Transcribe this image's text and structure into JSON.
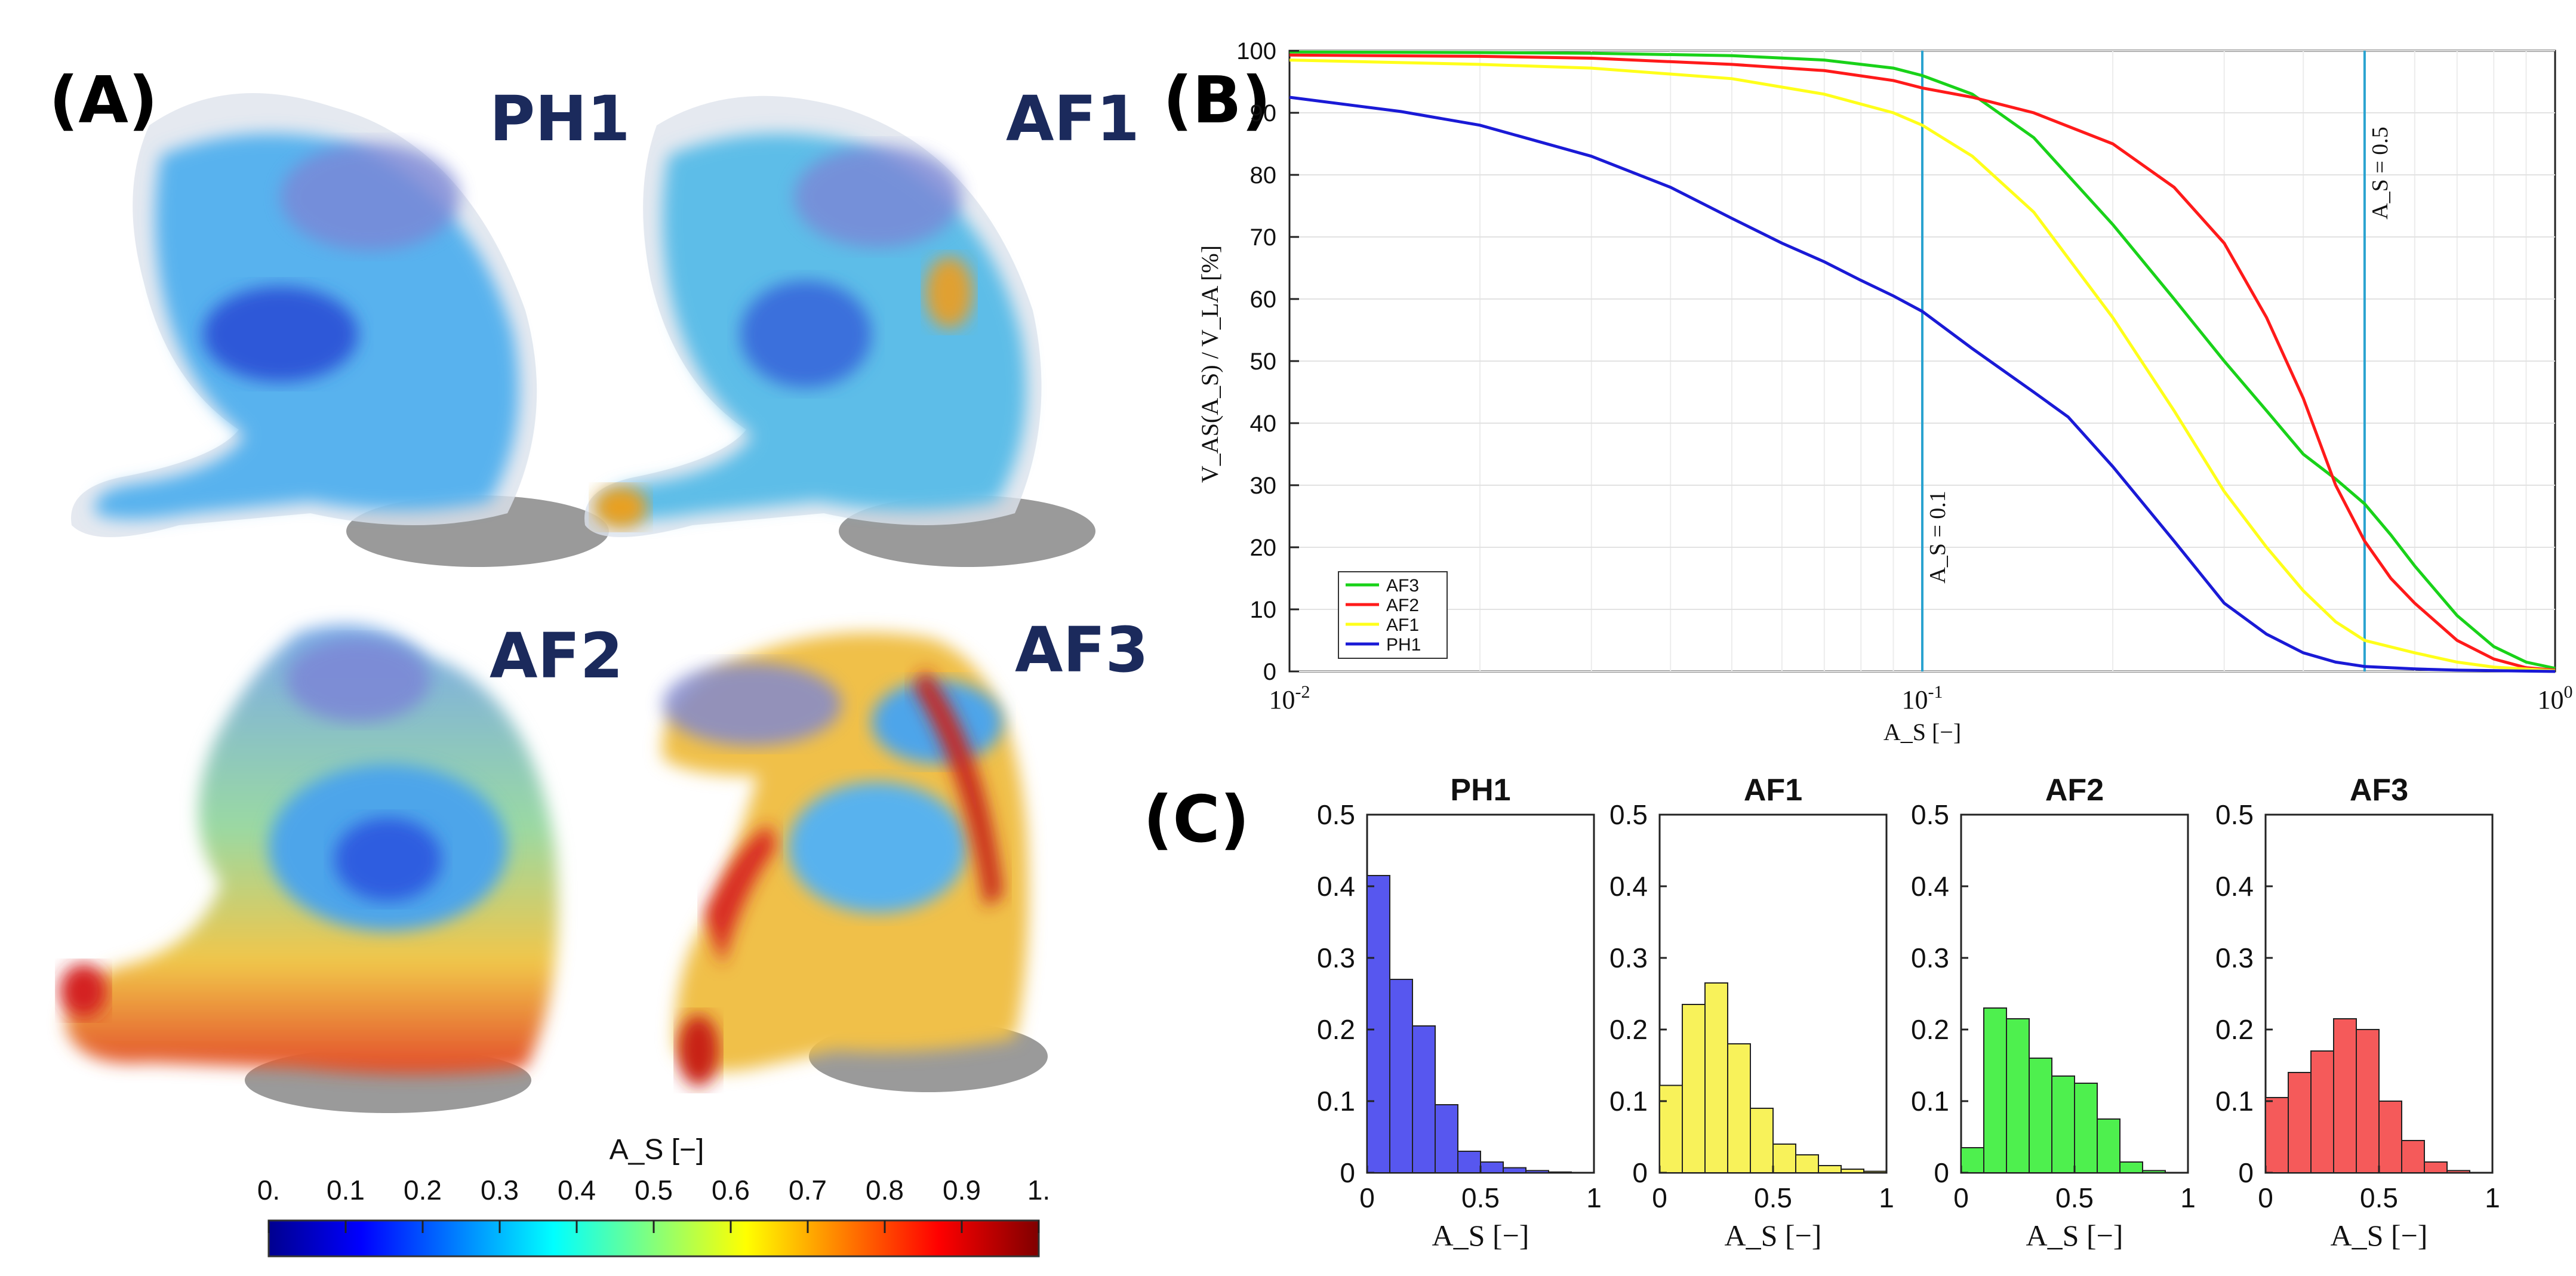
{
  "panels": {
    "a": "(A)",
    "b": "(B)",
    "c": "(C)"
  },
  "hearts": [
    "PH1",
    "AF1",
    "AF2",
    "AF3"
  ],
  "colorbar": {
    "title": "A_S [−]",
    "ticks": [
      "0.",
      "0.1",
      "0.2",
      "0.3",
      "0.4",
      "0.5",
      "0.6",
      "0.7",
      "0.8",
      "0.9",
      "1."
    ],
    "colors": [
      "#00008f",
      "#0000ff",
      "#00ffff",
      "#ffff00",
      "#ff0000",
      "#800000"
    ]
  },
  "chart_data": [
    {
      "type": "line",
      "id": "cumulative-volume",
      "xscale": "log",
      "xlim": [
        0.01,
        1
      ],
      "ylim": [
        0,
        100
      ],
      "xlabel": "A_S [−]",
      "ylabel": "V_AS(A_S) / V_LA [%]",
      "x_ticks": [
        "10^-2",
        "10^-1",
        "10^0"
      ],
      "y_ticks": [
        0,
        10,
        20,
        30,
        40,
        50,
        60,
        70,
        80,
        90,
        100
      ],
      "grid": true,
      "legend_position": "bottom-left",
      "vlines": [
        {
          "x": 0.1,
          "label": "A_S = 0.1"
        },
        {
          "x": 0.5,
          "label": "A_S = 0.5"
        }
      ],
      "series": [
        {
          "name": "AF3",
          "color": "#19d219",
          "points": [
            [
              0.01,
              99.8
            ],
            [
              0.02,
              99.7
            ],
            [
              0.03,
              99.6
            ],
            [
              0.05,
              99.2
            ],
            [
              0.07,
              98.5
            ],
            [
              0.09,
              97.2
            ],
            [
              0.1,
              96
            ],
            [
              0.12,
              93
            ],
            [
              0.15,
              86
            ],
            [
              0.2,
              72
            ],
            [
              0.25,
              60
            ],
            [
              0.3,
              50
            ],
            [
              0.35,
              42
            ],
            [
              0.4,
              35
            ],
            [
              0.45,
              31
            ],
            [
              0.5,
              27
            ],
            [
              0.55,
              22
            ],
            [
              0.6,
              17
            ],
            [
              0.7,
              9
            ],
            [
              0.8,
              4
            ],
            [
              0.9,
              1.5
            ],
            [
              1,
              0.5
            ]
          ]
        },
        {
          "name": "AF2",
          "color": "#ff1a1a",
          "points": [
            [
              0.01,
              99.3
            ],
            [
              0.02,
              99.1
            ],
            [
              0.03,
              98.8
            ],
            [
              0.05,
              97.8
            ],
            [
              0.07,
              96.8
            ],
            [
              0.09,
              95.2
            ],
            [
              0.1,
              94
            ],
            [
              0.12,
              92.5
            ],
            [
              0.15,
              90
            ],
            [
              0.2,
              85
            ],
            [
              0.25,
              78
            ],
            [
              0.3,
              69
            ],
            [
              0.35,
              57
            ],
            [
              0.4,
              44
            ],
            [
              0.45,
              30
            ],
            [
              0.5,
              21
            ],
            [
              0.55,
              15
            ],
            [
              0.6,
              11
            ],
            [
              0.7,
              5
            ],
            [
              0.8,
              2
            ],
            [
              0.9,
              0.6
            ],
            [
              1,
              0.2
            ]
          ]
        },
        {
          "name": "AF1",
          "color": "#ffff1a",
          "points": [
            [
              0.01,
              98.5
            ],
            [
              0.02,
              97.8
            ],
            [
              0.03,
              97.2
            ],
            [
              0.05,
              95.5
            ],
            [
              0.07,
              93
            ],
            [
              0.09,
              90
            ],
            [
              0.1,
              88
            ],
            [
              0.12,
              83
            ],
            [
              0.15,
              74
            ],
            [
              0.2,
              57
            ],
            [
              0.25,
              42
            ],
            [
              0.3,
              29
            ],
            [
              0.35,
              20
            ],
            [
              0.4,
              13
            ],
            [
              0.45,
              8
            ],
            [
              0.5,
              5
            ],
            [
              0.6,
              3
            ],
            [
              0.7,
              1.5
            ],
            [
              0.8,
              0.7
            ],
            [
              1,
              0.1
            ]
          ]
        },
        {
          "name": "PH1",
          "color": "#1a1ad6",
          "points": [
            [
              0.01,
              92.5
            ],
            [
              0.015,
              90.2
            ],
            [
              0.02,
              88
            ],
            [
              0.03,
              83
            ],
            [
              0.04,
              78
            ],
            [
              0.05,
              73
            ],
            [
              0.06,
              69
            ],
            [
              0.07,
              66
            ],
            [
              0.08,
              63
            ],
            [
              0.09,
              60.5
            ],
            [
              0.1,
              58
            ],
            [
              0.12,
              52
            ],
            [
              0.15,
              45
            ],
            [
              0.17,
              41
            ],
            [
              0.2,
              33
            ],
            [
              0.25,
              21
            ],
            [
              0.3,
              11
            ],
            [
              0.35,
              6
            ],
            [
              0.4,
              3
            ],
            [
              0.45,
              1.5
            ],
            [
              0.5,
              0.8
            ],
            [
              0.6,
              0.4
            ],
            [
              0.7,
              0.2
            ],
            [
              1,
              0
            ]
          ]
        }
      ]
    },
    {
      "type": "bar",
      "id": "hist-ph1",
      "title": "PH1",
      "xlabel": "A_S [−]",
      "xlim": [
        0,
        1
      ],
      "ylim": [
        0,
        0.5
      ],
      "bin_width": 0.1,
      "bin_starts": [
        0,
        0.1,
        0.2,
        0.3,
        0.4,
        0.5,
        0.6,
        0.7,
        0.8,
        0.9
      ],
      "values": [
        0.415,
        0.27,
        0.205,
        0.095,
        0.03,
        0.015,
        0.007,
        0.003,
        0.001,
        0
      ],
      "color": "#5757ef",
      "x_ticks": [
        "0",
        "0.5",
        "1"
      ],
      "y_ticks": [
        "0",
        "0.1",
        "0.2",
        "0.3",
        "0.4",
        "0.5"
      ]
    },
    {
      "type": "bar",
      "id": "hist-af1",
      "title": "AF1",
      "xlabel": "A_S [−]",
      "xlim": [
        0,
        1
      ],
      "ylim": [
        0,
        0.5
      ],
      "bin_width": 0.1,
      "bin_starts": [
        0,
        0.1,
        0.2,
        0.3,
        0.4,
        0.5,
        0.6,
        0.7,
        0.8,
        0.9
      ],
      "values": [
        0.122,
        0.235,
        0.265,
        0.18,
        0.09,
        0.04,
        0.025,
        0.01,
        0.005,
        0.002
      ],
      "color": "#f8f25a",
      "x_ticks": [
        "0",
        "0.5",
        "1"
      ],
      "y_ticks": [
        "0",
        "0.1",
        "0.2",
        "0.3",
        "0.4",
        "0.5"
      ]
    },
    {
      "type": "bar",
      "id": "hist-af2",
      "title": "AF2",
      "xlabel": "A_S [−]",
      "xlim": [
        0,
        1
      ],
      "ylim": [
        0,
        0.5
      ],
      "bin_width": 0.1,
      "bin_starts": [
        0,
        0.1,
        0.2,
        0.3,
        0.4,
        0.5,
        0.6,
        0.7,
        0.8,
        0.9
      ],
      "values": [
        0.035,
        0.23,
        0.215,
        0.16,
        0.135,
        0.125,
        0.075,
        0.015,
        0.003,
        0
      ],
      "color": "#4ef04e",
      "x_ticks": [
        "0",
        "0.5",
        "1"
      ],
      "y_ticks": [
        "0",
        "0.1",
        "0.2",
        "0.3",
        "0.4",
        "0.5"
      ]
    },
    {
      "type": "bar",
      "id": "hist-af3",
      "title": "AF3",
      "xlabel": "A_S [−]",
      "xlim": [
        0,
        1
      ],
      "ylim": [
        0,
        0.5
      ],
      "bin_width": 0.1,
      "bin_starts": [
        0,
        0.1,
        0.2,
        0.3,
        0.4,
        0.5,
        0.6,
        0.7,
        0.8,
        0.9
      ],
      "values": [
        0.105,
        0.14,
        0.17,
        0.215,
        0.2,
        0.1,
        0.045,
        0.015,
        0.003,
        0
      ],
      "color": "#f55a5a",
      "x_ticks": [
        "0",
        "0.5",
        "1"
      ],
      "y_ticks": [
        "0",
        "0.1",
        "0.2",
        "0.3",
        "0.4",
        "0.5"
      ]
    }
  ]
}
